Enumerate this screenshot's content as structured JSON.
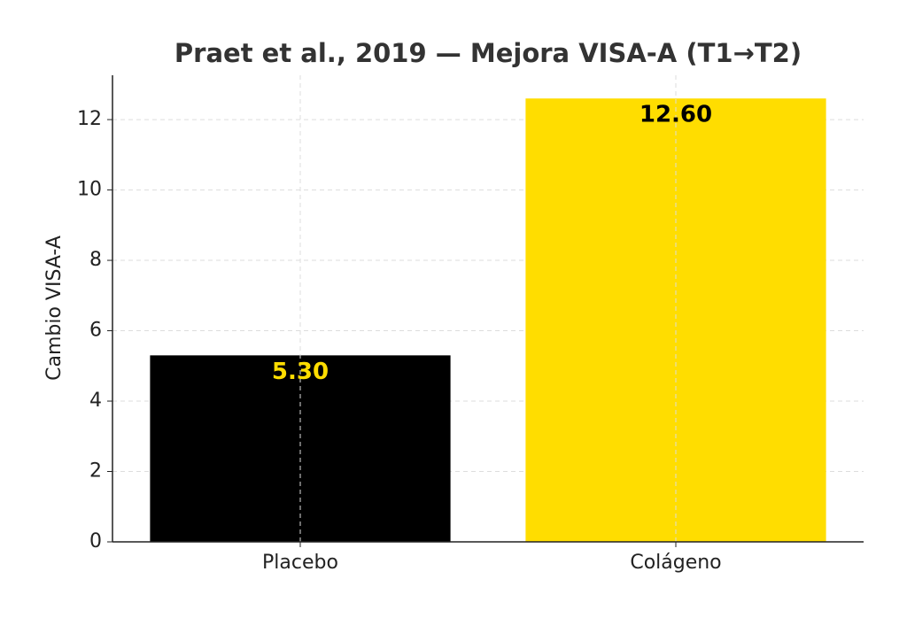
{
  "chart_data": {
    "type": "bar",
    "title": "Praet et al., 2019 — Mejora VISA-A (T1→T2)",
    "y_label": "Cambio VISA-A",
    "categories": [
      "Placebo",
      "Colágeno"
    ],
    "values": [
      5.3,
      12.6
    ],
    "value_labels": [
      "5.30",
      "12.60"
    ],
    "colors": [
      "#000000",
      "#ffdd00"
    ],
    "value_label_colors": [
      "#ffdd00",
      "#000000"
    ],
    "ylim": [
      0,
      13.26
    ],
    "yticks": [
      0,
      2,
      4,
      6,
      8,
      10,
      12
    ],
    "grid": true
  }
}
